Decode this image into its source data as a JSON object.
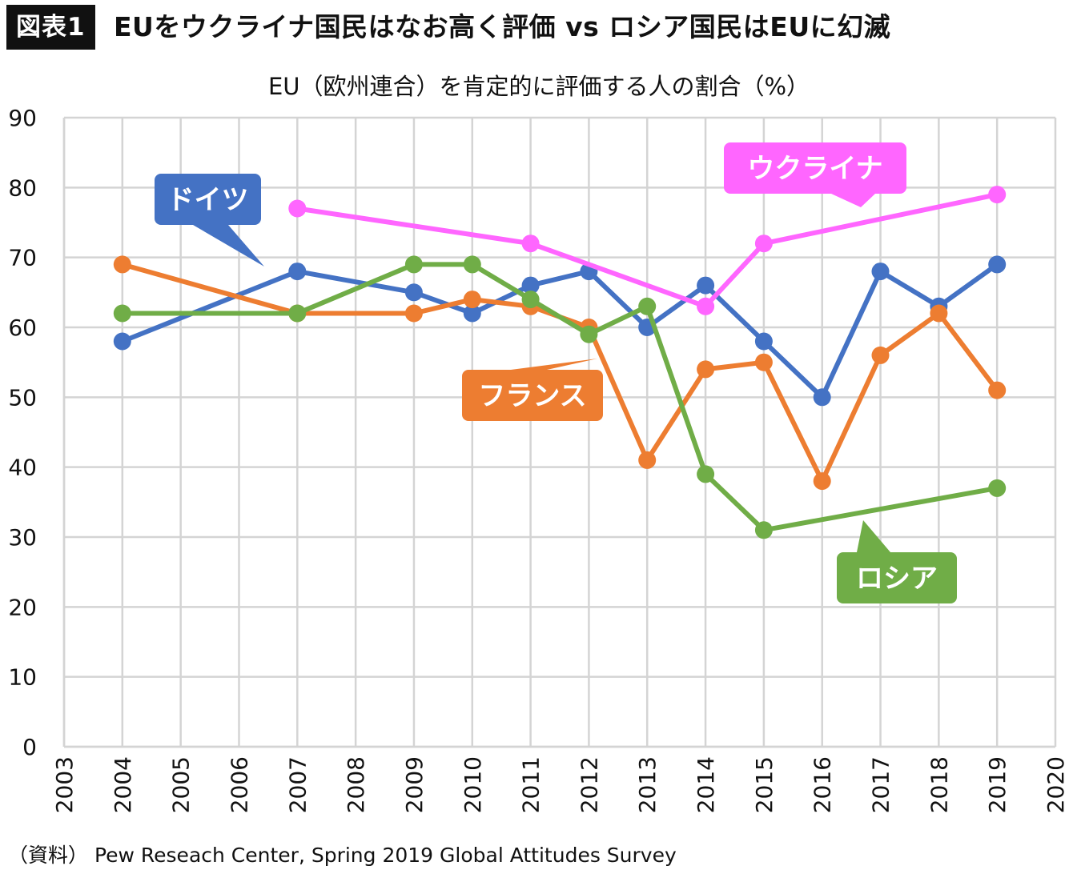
{
  "header": {
    "badge": "図表1",
    "title": "EUをウクライナ国民はなお高く評価 vs ロシア国民はEUに幻滅"
  },
  "source": "（資料） Pew Reseach Center, Spring 2019 Global Attitudes Survey",
  "chart_data": {
    "type": "line",
    "title": "EU（欧州連合）を肯定的に評価する人の割合（%）",
    "xlabel": "",
    "ylabel": "",
    "xlim": [
      2003,
      2020
    ],
    "ylim": [
      0,
      90
    ],
    "x_ticks": [
      "2003",
      "2004",
      "2005",
      "2006",
      "2007",
      "2008",
      "2009",
      "2010",
      "2011",
      "2012",
      "2013",
      "2014",
      "2015",
      "2016",
      "2017",
      "2018",
      "2019",
      "2020"
    ],
    "y_ticks": [
      "0",
      "10",
      "20",
      "30",
      "40",
      "50",
      "60",
      "70",
      "80",
      "90"
    ],
    "grid": true,
    "legend": "callouts",
    "series": [
      {
        "name": "ドイツ",
        "color": "#4472C4",
        "points": [
          [
            2004,
            58
          ],
          [
            2007,
            68
          ],
          [
            2009,
            65
          ],
          [
            2010,
            62
          ],
          [
            2011,
            66
          ],
          [
            2012,
            68
          ],
          [
            2013,
            60
          ],
          [
            2014,
            66
          ],
          [
            2015,
            58
          ],
          [
            2016,
            50
          ],
          [
            2017,
            68
          ],
          [
            2018,
            63
          ],
          [
            2019,
            69
          ]
        ]
      },
      {
        "name": "フランス",
        "color": "#ED7D31",
        "points": [
          [
            2004,
            69
          ],
          [
            2007,
            62
          ],
          [
            2009,
            62
          ],
          [
            2010,
            64
          ],
          [
            2011,
            63
          ],
          [
            2012,
            60
          ],
          [
            2013,
            41
          ],
          [
            2014,
            54
          ],
          [
            2015,
            55
          ],
          [
            2016,
            38
          ],
          [
            2017,
            56
          ],
          [
            2018,
            62
          ],
          [
            2019,
            51
          ]
        ]
      },
      {
        "name": "ロシア",
        "color": "#70AD47",
        "points": [
          [
            2004,
            62
          ],
          [
            2007,
            62
          ],
          [
            2009,
            69
          ],
          [
            2010,
            69
          ],
          [
            2011,
            64
          ],
          [
            2012,
            59
          ],
          [
            2013,
            63
          ],
          [
            2014,
            39
          ],
          [
            2015,
            31
          ],
          [
            2019,
            37
          ]
        ]
      },
      {
        "name": "ウクライナ",
        "color": "#FF66FF",
        "points": [
          [
            2007,
            77
          ],
          [
            2011,
            72
          ],
          [
            2014,
            63
          ],
          [
            2015,
            72
          ],
          [
            2019,
            79
          ]
        ]
      }
    ]
  }
}
